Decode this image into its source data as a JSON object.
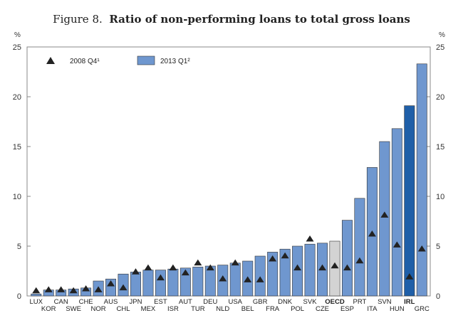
{
  "figure": {
    "number": "Figure 8.",
    "title": "Ratio of non-performing loans to total gross loans"
  },
  "chart_data": {
    "type": "bar",
    "title": "Ratio of non-performing loans to total gross loans",
    "unit_left": "%",
    "unit_right": "%",
    "ylim": [
      0,
      25
    ],
    "yticks": [
      0,
      5,
      10,
      15,
      20,
      25
    ],
    "grid": false,
    "legend_position": "top-left",
    "categories": [
      "LUX",
      "KOR",
      "CAN",
      "SWE",
      "CHE",
      "NOR",
      "AUS",
      "CHL",
      "JPN",
      "MEX",
      "EST",
      "ISR",
      "AUT",
      "TUR",
      "DEU",
      "NLD",
      "USA",
      "BEL",
      "GBR",
      "FRA",
      "DNK",
      "POL",
      "SVK",
      "CZE",
      "OECD",
      "ESP",
      "PRT",
      "ITA",
      "SVN",
      "HUN",
      "IRL",
      "GRC"
    ],
    "highlight": {
      "OECD": "#d3d3d3",
      "IRL": "#1f5fa8"
    },
    "bold_labels": [
      "OECD",
      "IRL"
    ],
    "series": [
      {
        "name": "2013 Q1²",
        "kind": "bar",
        "color": "#6f97cf",
        "values": [
          0.2,
          0.6,
          0.6,
          0.7,
          0.8,
          1.5,
          1.7,
          2.2,
          2.4,
          2.6,
          2.6,
          2.7,
          2.8,
          2.9,
          3.0,
          3.1,
          3.3,
          3.5,
          4.0,
          4.4,
          4.7,
          5.0,
          5.2,
          5.3,
          5.5,
          7.6,
          9.8,
          12.9,
          15.5,
          16.8,
          19.1,
          23.3
        ]
      },
      {
        "name": "2008 Q4¹",
        "kind": "marker-triangle",
        "color": "#222222",
        "values": [
          0.5,
          0.6,
          0.6,
          0.5,
          0.7,
          0.6,
          1.2,
          0.8,
          2.4,
          2.8,
          1.8,
          2.8,
          2.3,
          3.3,
          2.8,
          1.7,
          3.3,
          1.6,
          1.6,
          3.7,
          4.0,
          2.8,
          5.7,
          2.8,
          3.0,
          2.8,
          3.5,
          6.2,
          8.1,
          5.1,
          1.9,
          4.7
        ]
      }
    ]
  }
}
